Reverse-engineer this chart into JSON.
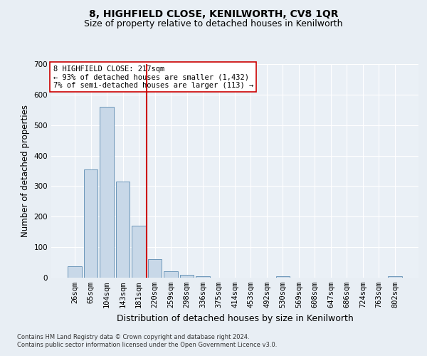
{
  "title": "8, HIGHFIELD CLOSE, KENILWORTH, CV8 1QR",
  "subtitle": "Size of property relative to detached houses in Kenilworth",
  "xlabel": "Distribution of detached houses by size in Kenilworth",
  "ylabel": "Number of detached properties",
  "footnote1": "Contains HM Land Registry data © Crown copyright and database right 2024.",
  "footnote2": "Contains public sector information licensed under the Open Government Licence v3.0.",
  "categories": [
    "26sqm",
    "65sqm",
    "104sqm",
    "143sqm",
    "181sqm",
    "220sqm",
    "259sqm",
    "298sqm",
    "336sqm",
    "375sqm",
    "414sqm",
    "453sqm",
    "492sqm",
    "530sqm",
    "569sqm",
    "608sqm",
    "647sqm",
    "686sqm",
    "724sqm",
    "763sqm",
    "802sqm"
  ],
  "values": [
    38,
    355,
    560,
    315,
    170,
    60,
    22,
    10,
    5,
    0,
    0,
    0,
    0,
    4,
    0,
    0,
    0,
    0,
    0,
    0,
    4
  ],
  "bar_color": "#c8d8e8",
  "bar_edge_color": "#5a8ab0",
  "vline_x": 4.5,
  "vline_color": "#cc0000",
  "annotation_text": "8 HIGHFIELD CLOSE: 217sqm\n← 93% of detached houses are smaller (1,432)\n7% of semi-detached houses are larger (113) →",
  "annotation_box_color": "#ffffff",
  "annotation_box_edge": "#cc0000",
  "ylim": [
    0,
    700
  ],
  "yticks": [
    0,
    100,
    200,
    300,
    400,
    500,
    600,
    700
  ],
  "bg_color": "#e8eef4",
  "plot_bg_color": "#eaf0f6",
  "grid_color": "#ffffff",
  "title_fontsize": 10,
  "subtitle_fontsize": 9,
  "axis_label_fontsize": 8.5,
  "tick_fontsize": 7.5,
  "footnote_fontsize": 6,
  "annotation_fontsize": 7.5
}
